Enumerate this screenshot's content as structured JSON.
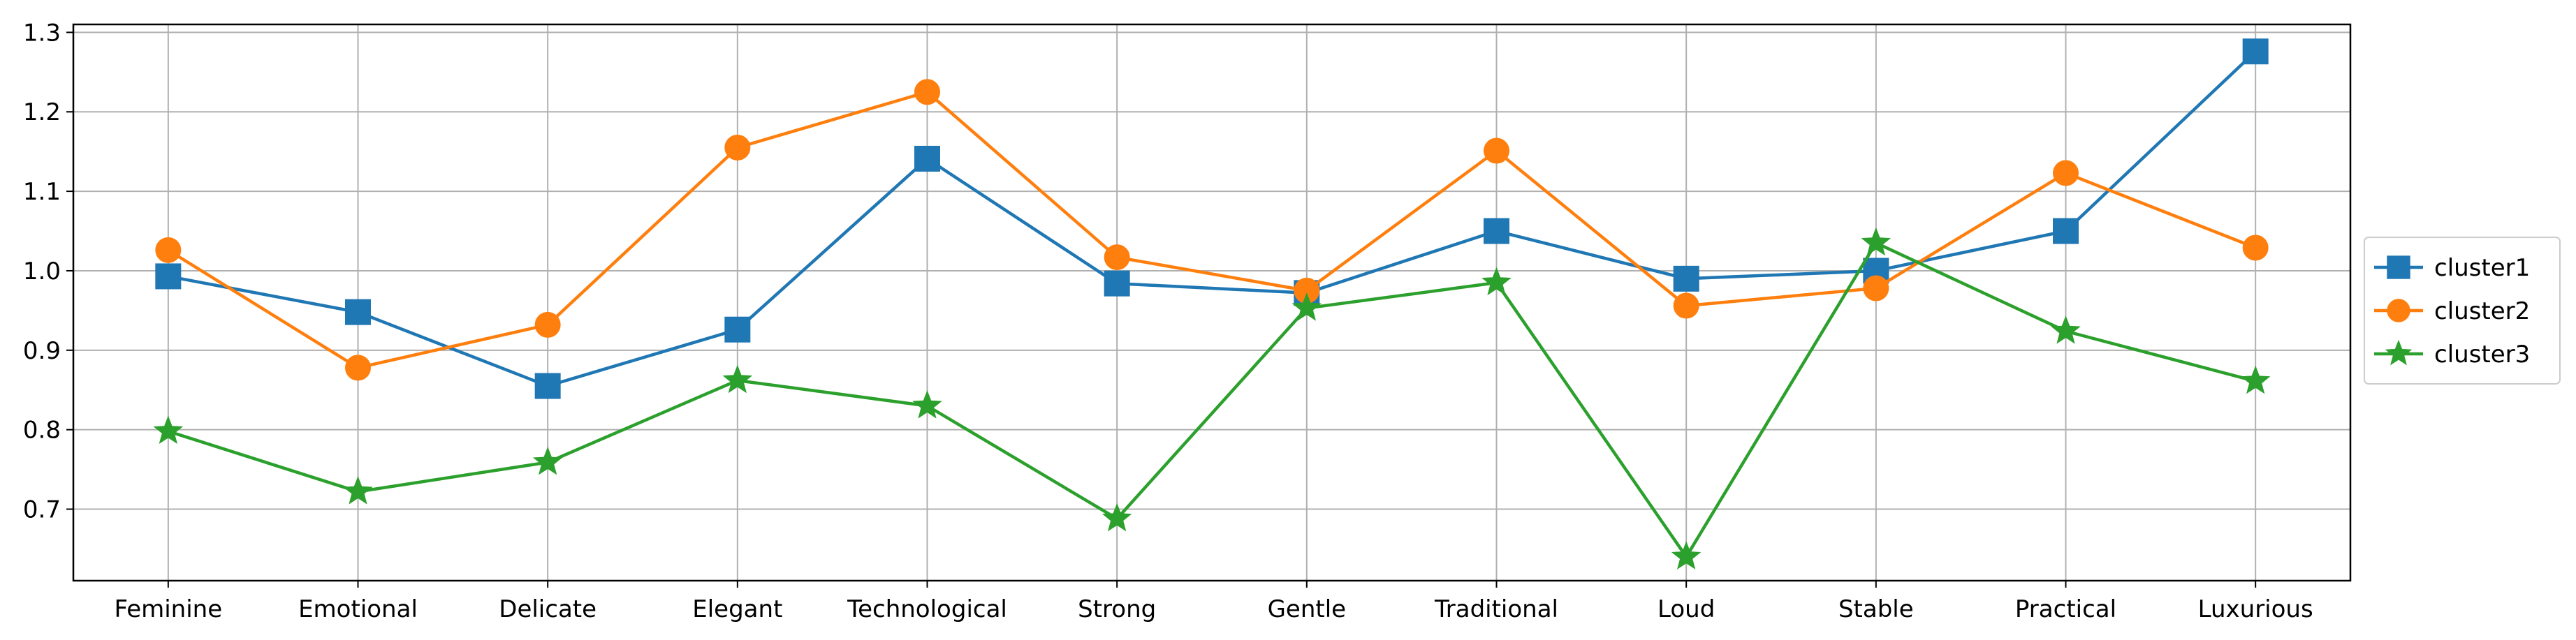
{
  "chart_data": {
    "type": "line",
    "title": "",
    "xlabel": "",
    "ylabel": "",
    "categories": [
      "Feminine",
      "Emotional",
      "Delicate",
      "Elegant",
      "Technological",
      "Strong",
      "Gentle",
      "Traditional",
      "Loud",
      "Stable",
      "Practical",
      "Luxurious"
    ],
    "ylim": [
      0.61,
      1.31
    ],
    "yticks": [
      "0.7",
      "0.8",
      "0.9",
      "1.0",
      "1.1",
      "1.2",
      "1.3"
    ],
    "grid": true,
    "legend_position": "center-right, outside plot",
    "series": [
      {
        "name": "cluster1",
        "marker": "square",
        "color": "#1f77b4",
        "values": [
          0.993,
          0.948,
          0.855,
          0.926,
          1.141,
          0.984,
          0.972,
          1.05,
          0.99,
          1.0,
          1.05,
          1.276
        ]
      },
      {
        "name": "cluster2",
        "marker": "circle",
        "color": "#ff7f0e",
        "values": [
          1.026,
          0.878,
          0.932,
          1.155,
          1.225,
          1.017,
          0.975,
          1.151,
          0.956,
          0.978,
          1.123,
          1.029
        ]
      },
      {
        "name": "cluster3",
        "marker": "star",
        "color": "#2ca02c",
        "values": [
          0.798,
          0.722,
          0.759,
          0.862,
          0.83,
          0.688,
          0.953,
          0.985,
          0.64,
          1.035,
          0.924,
          0.861
        ]
      }
    ]
  }
}
